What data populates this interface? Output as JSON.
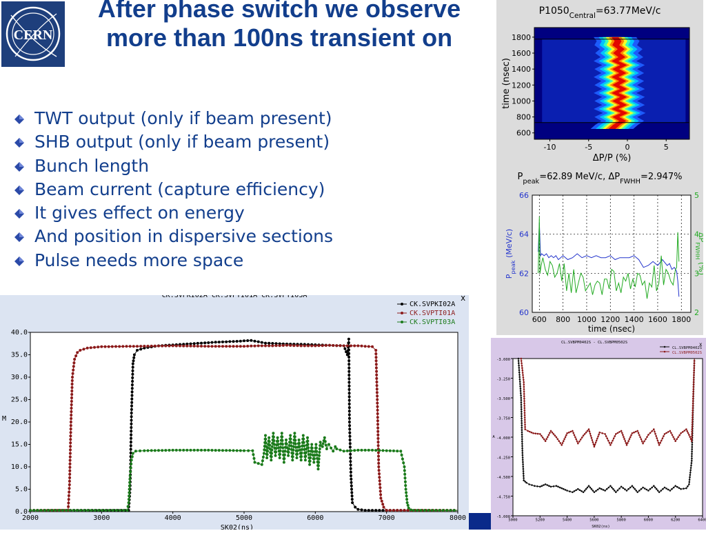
{
  "slide": {
    "title": "After phase switch we observe more than 100ns transient on",
    "bullets": [
      "TWT output (only if beam present)",
      "SHB output (only if beam present)",
      "Bunch length",
      "Beam current (capture efficiency)",
      "It gives effect on energy",
      "And position in dispersive sections",
      "Pulse needs more space"
    ],
    "logo_text": "CERN",
    "colors": {
      "title": "#123e8c",
      "bullet_diamond": "#2b4aa8",
      "background": "#ffffff"
    }
  },
  "chart_data": [
    {
      "id": "heatmap",
      "type": "heatmap",
      "title_parts": [
        "P1050",
        "Central",
        "=63.77MeV/c"
      ],
      "xlabel": "ΔP/P (%)",
      "ylabel": "time (nsec)",
      "x_ticks": [
        "-10",
        "-5",
        "0",
        "5"
      ],
      "y_ticks": [
        "600",
        "800",
        "1000",
        "1200",
        "1400",
        "1600",
        "1800"
      ],
      "xlim": [
        -12,
        8
      ],
      "ylim": [
        520,
        1920
      ],
      "lines_at_time": [
        730,
        1775
      ],
      "ridge": {
        "time": [
          650,
          700,
          750,
          800,
          850,
          900,
          950,
          1000,
          1050,
          1100,
          1150,
          1200,
          1250,
          1300,
          1350,
          1400,
          1450,
          1500,
          1550,
          1600,
          1650,
          1700,
          1750,
          1800
        ],
        "center": [
          -2.0,
          -1.4,
          -0.6,
          -1.5,
          -0.4,
          -1.6,
          -0.5,
          -1.5,
          -0.5,
          -1.6,
          -0.5,
          -1.5,
          -0.6,
          -1.6,
          -0.6,
          -1.5,
          -0.5,
          -1.6,
          -0.7,
          -1.4,
          -0.8,
          -1.5,
          -1.2,
          -1.6
        ]
      }
    },
    {
      "id": "peak",
      "type": "line",
      "title_parts": [
        "P",
        "peak",
        "=62.89 MeV/c, ΔP",
        "FWHH",
        "=2.947%"
      ],
      "xlabel": "time (nsec)",
      "ylabel_parts": [
        "P",
        "peak",
        " (MeV/c)"
      ],
      "y2label_parts": [
        "ΔP",
        "FWHH",
        " (%)"
      ],
      "x_ticks": [
        "600",
        "800",
        "1000",
        "1200",
        "1400",
        "1600",
        "1800"
      ],
      "y_ticks": [
        "60",
        "62",
        "64",
        "66"
      ],
      "y2_ticks": [
        "2",
        "3",
        "4",
        "5"
      ],
      "xlim": [
        540,
        1880
      ],
      "ylim": [
        60,
        66
      ],
      "y2lim": [
        2,
        5
      ],
      "colors": {
        "left": "#2233cc",
        "right": "#22aa22"
      },
      "series": [
        {
          "name": "P peak",
          "axis": "left",
          "x": [
            590,
            600,
            610,
            620,
            640,
            660,
            680,
            700,
            720,
            740,
            760,
            780,
            800,
            840,
            880,
            920,
            960,
            1000,
            1040,
            1080,
            1120,
            1160,
            1200,
            1240,
            1280,
            1320,
            1360,
            1400,
            1440,
            1480,
            1520,
            1560,
            1600,
            1640,
            1680,
            1700,
            1720,
            1740,
            1760,
            1770,
            1780
          ],
          "y": [
            63.1,
            64.6,
            62.9,
            63.0,
            62.9,
            63.0,
            62.8,
            62.9,
            62.8,
            62.9,
            62.7,
            62.8,
            62.9,
            62.7,
            62.8,
            63.0,
            62.8,
            62.9,
            62.8,
            62.9,
            62.8,
            62.8,
            62.9,
            62.7,
            62.8,
            62.8,
            62.8,
            62.9,
            62.7,
            62.3,
            62.4,
            62.6,
            62.4,
            62.7,
            62.4,
            62.5,
            62.2,
            62.3,
            62.1,
            61.6,
            60.8
          ]
        },
        {
          "name": "ΔP FWHH",
          "axis": "right",
          "x": [
            590,
            600,
            605,
            615,
            630,
            650,
            670,
            690,
            710,
            730,
            750,
            770,
            790,
            810,
            830,
            850,
            870,
            890,
            910,
            930,
            950,
            970,
            990,
            1010,
            1030,
            1050,
            1070,
            1090,
            1110,
            1130,
            1150,
            1170,
            1190,
            1210,
            1230,
            1250,
            1270,
            1290,
            1310,
            1330,
            1350,
            1370,
            1390,
            1410,
            1430,
            1450,
            1470,
            1490,
            1510,
            1530,
            1550,
            1570,
            1590,
            1610,
            1630,
            1650,
            1670,
            1690,
            1710,
            1730,
            1750,
            1760,
            1770,
            1780
          ],
          "y": [
            3.0,
            4.45,
            3.0,
            3.2,
            3.4,
            3.1,
            2.95,
            3.3,
            3.2,
            2.9,
            3.0,
            3.25,
            2.8,
            3.25,
            2.55,
            3.0,
            2.5,
            3.1,
            2.5,
            2.75,
            3.0,
            2.9,
            2.55,
            2.65,
            2.75,
            2.45,
            2.7,
            2.8,
            2.75,
            2.45,
            2.85,
            2.85,
            2.6,
            3.1,
            3.05,
            2.55,
            2.75,
            2.5,
            2.9,
            2.8,
            3.0,
            2.6,
            2.85,
            2.65,
            3.0,
            2.95,
            2.7,
            2.8,
            2.35,
            2.75,
            2.65,
            3.2,
            2.55,
            2.75,
            3.45,
            2.7,
            3.1,
            3.0,
            2.8,
            2.7,
            3.1,
            3.15,
            4.05,
            3.3
          ]
        }
      ]
    },
    {
      "id": "scope_main",
      "type": "line",
      "header": "CK.SVPKI02A      CK.SVPTI01A      CK.SVPTI03A",
      "xlabel": "SK02(ns)",
      "ylabel": "M",
      "x_ticks": [
        "2000",
        "3000",
        "4000",
        "5000",
        "6000",
        "7000",
        "8000"
      ],
      "y_ticks": [
        "0.0",
        "5.0",
        "10.0",
        "15.0",
        "20.0",
        "25.0",
        "30.0",
        "35.0",
        "40.0"
      ],
      "xlim": [
        2000,
        8000
      ],
      "ylim": [
        0,
        40
      ],
      "close_symbol": "x",
      "series": [
        {
          "name": "CK.SVPKI02A",
          "color": "#000000",
          "x": [
            2000,
            3380,
            3400,
            3420,
            3440,
            3460,
            3500,
            3600,
            3800,
            4000,
            4300,
            4600,
            4900,
            5100,
            5300,
            5600,
            5900,
            6200,
            6400,
            6450,
            6470,
            6480,
            6500,
            6520,
            6560,
            6600,
            6700,
            8000
          ],
          "y": [
            0.3,
            0.3,
            5.0,
            22.0,
            33.0,
            35.0,
            36.0,
            36.5,
            37.0,
            37.2,
            37.5,
            37.8,
            38.0,
            38.2,
            37.6,
            37.4,
            37.3,
            37.1,
            37.0,
            35.0,
            38.5,
            20.0,
            8.0,
            2.0,
            1.0,
            0.5,
            0.3,
            0.3
          ]
        },
        {
          "name": "CK.SVPTI01A",
          "color": "#8b1a1a",
          "x": [
            2000,
            2530,
            2550,
            2570,
            2590,
            2620,
            2660,
            2700,
            2800,
            3000,
            3500,
            4000,
            4500,
            5000,
            5200,
            5400,
            5600,
            5800,
            6000,
            6200,
            6400,
            6600,
            6800,
            6850,
            6870,
            6890,
            6920,
            6960,
            7000,
            8000
          ],
          "y": [
            0.3,
            0.3,
            6.0,
            20.0,
            30.0,
            34.0,
            35.5,
            36.0,
            36.5,
            36.8,
            36.9,
            37.0,
            36.9,
            36.9,
            37.0,
            37.0,
            37.1,
            37.0,
            37.0,
            37.1,
            37.0,
            37.0,
            36.8,
            36.0,
            25.0,
            10.0,
            3.0,
            1.0,
            0.3,
            0.3
          ]
        },
        {
          "name": "CK.SVPTI03A",
          "color": "#1a7a1a",
          "x": [
            2000,
            3360,
            3380,
            3400,
            3420,
            3440,
            3480,
            3600,
            4000,
            4500,
            5000,
            5120,
            5150,
            5250,
            5280,
            5300,
            5320,
            5350,
            5380,
            5410,
            5440,
            5470,
            5500,
            5530,
            5560,
            5590,
            5620,
            5650,
            5680,
            5710,
            5740,
            5770,
            5800,
            5830,
            5860,
            5890,
            5920,
            5950,
            5980,
            6010,
            6040,
            6070,
            6100,
            6130,
            6160,
            6190,
            6220,
            6250,
            6280,
            6300,
            6400,
            6600,
            6800,
            7000,
            7200,
            7250,
            7270,
            7290,
            7310,
            7340,
            7380,
            8000
          ],
          "y": [
            0.3,
            0.3,
            2.0,
            8.0,
            11.5,
            13.0,
            13.5,
            13.6,
            13.7,
            13.7,
            13.6,
            13.6,
            11.0,
            10.5,
            13.0,
            17.0,
            12.0,
            16.5,
            11.5,
            17.5,
            12.5,
            16.5,
            12.0,
            17.5,
            11.0,
            16.0,
            12.5,
            17.0,
            11.5,
            17.5,
            12.0,
            16.0,
            11.5,
            17.0,
            11.5,
            16.5,
            10.5,
            15.0,
            11.0,
            15.0,
            9.5,
            15.5,
            14.5,
            16.5,
            14.0,
            15.0,
            14.2,
            13.5,
            14.5,
            14.0,
            13.5,
            13.7,
            13.7,
            13.6,
            13.5,
            10.0,
            5.0,
            2.0,
            0.8,
            0.4,
            0.3,
            0.3
          ]
        }
      ]
    },
    {
      "id": "scope_small",
      "type": "line",
      "header": "CL.SVBPM0402S  -  CL.SVBPM0502S",
      "xlabel": "SK02(ns)",
      "ylabel": "A",
      "x_ticks": [
        "5000",
        "5200",
        "5400",
        "5600",
        "5800",
        "6000",
        "6200",
        "6400"
      ],
      "y_ticks": [
        "-3.000",
        "-3.250",
        "-3.500",
        "-3.750",
        "-4.000",
        "-4.250",
        "-4.500",
        "-4.750",
        "-5.000"
      ],
      "xlim": [
        5000,
        6400
      ],
      "ylim": [
        -5.0,
        -3.0
      ],
      "close_symbol": "x",
      "series": [
        {
          "name": "CL.SVBPM0402S",
          "color": "#111111",
          "x": [
            5040,
            5060,
            5070,
            5080,
            5100,
            5120,
            5160,
            5200,
            5240,
            5280,
            5320,
            5360,
            5400,
            5440,
            5480,
            5520,
            5560,
            5600,
            5640,
            5680,
            5720,
            5760,
            5800,
            5840,
            5880,
            5920,
            5960,
            6000,
            6040,
            6080,
            6120,
            6160,
            6200,
            6240,
            6280,
            6300,
            6320,
            6330,
            6340
          ],
          "y": [
            -2.9,
            -3.5,
            -4.2,
            -4.55,
            -4.58,
            -4.6,
            -4.62,
            -4.63,
            -4.6,
            -4.63,
            -4.62,
            -4.65,
            -4.68,
            -4.7,
            -4.66,
            -4.7,
            -4.62,
            -4.7,
            -4.65,
            -4.68,
            -4.62,
            -4.7,
            -4.63,
            -4.68,
            -4.62,
            -4.7,
            -4.64,
            -4.68,
            -4.62,
            -4.7,
            -4.64,
            -4.68,
            -4.62,
            -4.66,
            -4.65,
            -4.6,
            -4.3,
            -3.6,
            -2.9
          ]
        },
        {
          "name": "CL.SVBPM0502S",
          "color": "#8b1a1a",
          "x": [
            5060,
            5080,
            5090,
            5110,
            5150,
            5200,
            5240,
            5280,
            5320,
            5360,
            5400,
            5440,
            5480,
            5520,
            5560,
            5600,
            5640,
            5680,
            5720,
            5760,
            5800,
            5840,
            5880,
            5920,
            5960,
            6000,
            6040,
            6080,
            6120,
            6160,
            6200,
            6240,
            6280,
            6300,
            6320,
            6340
          ],
          "y": [
            -2.9,
            -3.3,
            -3.9,
            -3.92,
            -3.95,
            -3.96,
            -4.05,
            -3.92,
            -4.0,
            -4.1,
            -3.95,
            -3.92,
            -4.08,
            -3.98,
            -3.9,
            -4.12,
            -3.94,
            -3.96,
            -4.1,
            -3.96,
            -3.92,
            -4.1,
            -3.95,
            -3.92,
            -4.08,
            -3.97,
            -3.9,
            -4.1,
            -3.96,
            -3.92,
            -4.05,
            -3.95,
            -3.9,
            -3.97,
            -4.05,
            -2.9
          ]
        }
      ]
    }
  ]
}
